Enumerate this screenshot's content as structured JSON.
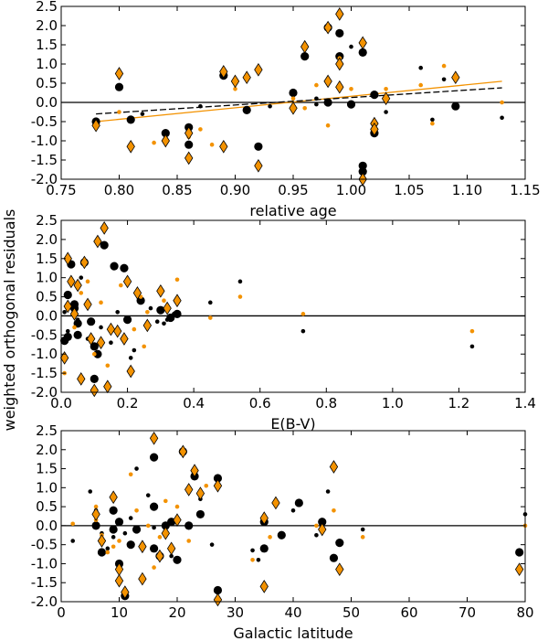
{
  "shared_ylabel": "weighted orthogonal residuals",
  "colors": {
    "orange": "#f39200",
    "black": "#000000",
    "diamond_edge": "#000000"
  },
  "chart_data": [
    {
      "type": "scatter",
      "xlabel": "relative age",
      "xlim": [
        0.75,
        1.15
      ],
      "ylim": [
        -2.0,
        2.5
      ],
      "xticks": [
        "0.75",
        "0.80",
        "0.85",
        "0.90",
        "0.95",
        "1.00",
        "1.05",
        "1.10",
        "1.15"
      ],
      "yticks": [
        "-2.0",
        "-1.5",
        "-1.0",
        "-0.5",
        "0.0",
        "0.5",
        "1.0",
        "1.5",
        "2.0",
        "2.5"
      ],
      "xtick_values": [
        0.75,
        0.8,
        0.85,
        0.9,
        0.95,
        1.0,
        1.05,
        1.1,
        1.15
      ],
      "series": [
        {
          "name": "large black circles",
          "marker": "circle-large",
          "color": "#000000",
          "x": [
            0.78,
            0.8,
            0.84,
            0.86,
            0.86,
            0.89,
            0.91,
            0.92,
            0.95,
            0.96,
            0.98,
            0.99,
            0.99,
            1.0,
            1.01,
            1.01,
            1.01,
            1.02,
            1.02,
            1.09,
            0.98,
            0.81
          ],
          "y": [
            -0.5,
            0.4,
            -0.8,
            -0.65,
            -1.1,
            0.7,
            -0.2,
            -1.15,
            0.25,
            1.2,
            1.95,
            1.2,
            1.8,
            -0.05,
            1.3,
            -1.65,
            -1.8,
            0.2,
            -0.8,
            -0.1,
            0.0,
            -0.45
          ]
        },
        {
          "name": "small black points",
          "marker": "circle-small",
          "color": "#000000",
          "x": [
            0.8,
            0.82,
            0.87,
            0.93,
            0.97,
            0.99,
            1.03,
            1.03,
            1.06,
            1.07,
            1.08,
            1.13,
            0.9,
            0.97,
            1.0
          ],
          "y": [
            0.75,
            -0.3,
            -0.1,
            -0.1,
            0.1,
            0.45,
            0.1,
            -0.25,
            0.9,
            -0.45,
            0.6,
            -0.4,
            0.55,
            -0.05,
            1.45
          ]
        },
        {
          "name": "small orange points",
          "marker": "circle-small",
          "color": "#f39200",
          "x": [
            0.8,
            0.83,
            0.87,
            0.88,
            0.9,
            0.95,
            0.96,
            0.97,
            0.99,
            1.0,
            1.03,
            1.06,
            1.07,
            1.08,
            1.13,
            0.86,
            0.98
          ],
          "y": [
            -0.25,
            -1.05,
            -0.7,
            -1.1,
            0.35,
            0.1,
            -0.15,
            0.45,
            1.15,
            0.35,
            0.35,
            0.45,
            -0.55,
            0.95,
            0.0,
            -0.9,
            -0.6
          ]
        },
        {
          "name": "orange diamonds",
          "marker": "diamond",
          "color": "#f39200",
          "x": [
            0.78,
            0.8,
            0.81,
            0.84,
            0.86,
            0.86,
            0.89,
            0.89,
            0.9,
            0.91,
            0.92,
            0.92,
            0.95,
            0.96,
            0.98,
            0.98,
            0.99,
            0.99,
            0.99,
            1.01,
            1.01,
            1.02,
            1.02,
            1.03,
            1.09
          ],
          "y": [
            -0.6,
            0.75,
            -1.15,
            -1.0,
            -1.45,
            -0.8,
            0.8,
            -1.15,
            0.55,
            0.65,
            0.85,
            -1.65,
            -0.15,
            1.45,
            1.95,
            0.55,
            2.3,
            1.0,
            0.4,
            1.55,
            -2.0,
            -0.55,
            -0.7,
            0.1,
            0.65
          ]
        }
      ],
      "fit_lines": [
        {
          "name": "orange fit",
          "color": "#f39200",
          "dash": false,
          "x": [
            0.78,
            1.13
          ],
          "y": [
            -0.5,
            0.55
          ]
        },
        {
          "name": "black dashed fit",
          "color": "#000000",
          "dash": true,
          "x": [
            0.78,
            1.13
          ],
          "y": [
            -0.3,
            0.38
          ]
        }
      ]
    },
    {
      "type": "scatter",
      "xlabel": "E(B-V)",
      "xlim": [
        0.0,
        1.4
      ],
      "ylim": [
        -2.0,
        2.5
      ],
      "xticks": [
        "0.0",
        "0.2",
        "0.4",
        "0.6",
        "0.8",
        "1.0",
        "1.2",
        "1.4"
      ],
      "yticks": [
        "-2.0",
        "-1.5",
        "-1.0",
        "-0.5",
        "0.0",
        "0.5",
        "1.0",
        "1.5",
        "2.0",
        "2.5"
      ],
      "xtick_values": [
        0.0,
        0.2,
        0.4,
        0.6,
        0.8,
        1.0,
        1.2,
        1.4
      ],
      "series": [
        {
          "name": "large black circles",
          "marker": "circle-large",
          "color": "#000000",
          "x": [
            0.01,
            0.02,
            0.03,
            0.04,
            0.05,
            0.05,
            0.07,
            0.09,
            0.1,
            0.1,
            0.13,
            0.16,
            0.19,
            0.24,
            0.3,
            0.33,
            0.35,
            0.02,
            0.04,
            0.11,
            0.2
          ],
          "y": [
            -0.65,
            0.55,
            1.35,
            0.2,
            -0.2,
            -0.5,
            1.4,
            -0.15,
            -1.65,
            -0.8,
            1.85,
            1.3,
            1.25,
            0.4,
            0.15,
            -0.05,
            0.05,
            -0.55,
            0.3,
            -1.0,
            -0.1
          ]
        },
        {
          "name": "small black points",
          "marker": "circle-small",
          "color": "#000000",
          "x": [
            0.02,
            0.05,
            0.06,
            0.08,
            0.12,
            0.15,
            0.17,
            0.21,
            0.22,
            0.27,
            0.29,
            0.31,
            0.32,
            0.33,
            0.34,
            0.45,
            0.54,
            0.73,
            1.24,
            0.01
          ],
          "y": [
            -0.4,
            -0.1,
            1.0,
            -0.6,
            -0.3,
            -0.7,
            0.1,
            -1.1,
            -0.9,
            0.2,
            -0.15,
            -0.2,
            -0.1,
            0.0,
            0.05,
            0.35,
            0.9,
            -0.4,
            -0.8,
            0.1
          ]
        },
        {
          "name": "small orange points",
          "marker": "circle-small",
          "color": "#f39200",
          "x": [
            0.02,
            0.04,
            0.06,
            0.08,
            0.1,
            0.12,
            0.14,
            0.18,
            0.22,
            0.24,
            0.25,
            0.26,
            0.3,
            0.31,
            0.35,
            0.45,
            0.54,
            0.73,
            1.24,
            0.01
          ],
          "y": [
            0.2,
            -0.3,
            0.6,
            0.9,
            -1.0,
            0.35,
            -1.3,
            0.8,
            -0.35,
            0.5,
            -0.8,
            0.1,
            0.65,
            0.4,
            0.95,
            -0.05,
            0.5,
            0.05,
            -0.4,
            -1.5
          ]
        },
        {
          "name": "orange diamonds",
          "marker": "diamond",
          "color": "#f39200",
          "x": [
            0.01,
            0.02,
            0.03,
            0.04,
            0.05,
            0.06,
            0.07,
            0.08,
            0.09,
            0.1,
            0.11,
            0.12,
            0.13,
            0.14,
            0.15,
            0.17,
            0.19,
            0.2,
            0.21,
            0.23,
            0.26,
            0.3,
            0.32,
            0.35,
            0.02
          ],
          "y": [
            -1.1,
            1.5,
            0.9,
            0.05,
            0.8,
            -1.65,
            1.4,
            0.3,
            -0.6,
            -1.95,
            1.95,
            -0.7,
            2.3,
            -1.85,
            -0.35,
            -0.4,
            -0.6,
            0.9,
            -1.45,
            0.6,
            -0.25,
            0.65,
            0.2,
            0.4,
            0.25
          ]
        }
      ],
      "fit_lines": []
    },
    {
      "type": "scatter",
      "xlabel": "Galactic latitude",
      "xlim": [
        0,
        80
      ],
      "ylim": [
        -2.0,
        2.5
      ],
      "xticks": [
        "0",
        "10",
        "20",
        "30",
        "40",
        "50",
        "60",
        "70",
        "80"
      ],
      "yticks": [
        "-2.0",
        "-1.5",
        "-1.0",
        "-0.5",
        "0.0",
        "0.5",
        "1.0",
        "1.5",
        "2.0",
        "2.5"
      ],
      "xtick_values": [
        0,
        10,
        20,
        30,
        40,
        50,
        60,
        70,
        80
      ],
      "series": [
        {
          "name": "large black circles",
          "marker": "circle-large",
          "color": "#000000",
          "x": [
            6,
            7,
            9,
            10,
            10,
            11,
            12,
            16,
            16,
            16,
            17,
            18,
            20,
            21,
            22,
            23,
            24,
            27,
            27,
            35,
            35,
            38,
            41,
            45,
            47,
            48,
            79,
            9,
            13,
            19
          ],
          "y": [
            0.0,
            -0.7,
            0.4,
            0.1,
            -1.0,
            -1.85,
            -0.5,
            0.5,
            1.8,
            -0.6,
            -0.8,
            0.0,
            -0.9,
            1.95,
            0.0,
            1.3,
            0.3,
            1.25,
            -1.7,
            0.1,
            -0.6,
            -0.25,
            0.6,
            0.1,
            -0.85,
            -0.45,
            -0.7,
            -0.1,
            -0.1,
            0.1
          ]
        },
        {
          "name": "small black points",
          "marker": "circle-small",
          "color": "#000000",
          "x": [
            2,
            5,
            6,
            8,
            9,
            11,
            13,
            15,
            16,
            19,
            24,
            26,
            33,
            34,
            40,
            44,
            46,
            52,
            80,
            7,
            12
          ],
          "y": [
            -0.4,
            0.9,
            0.4,
            -0.6,
            -0.3,
            -0.2,
            1.5,
            0.8,
            -0.05,
            -0.8,
            0.7,
            -0.5,
            -0.65,
            -0.9,
            0.4,
            -0.25,
            0.9,
            -0.1,
            0.3,
            -0.2,
            0.2
          ]
        },
        {
          "name": "small orange points",
          "marker": "circle-small",
          "color": "#f39200",
          "x": [
            2,
            6,
            7,
            8,
            10,
            12,
            13,
            15,
            16,
            18,
            20,
            22,
            25,
            33,
            36,
            44,
            47,
            52,
            80,
            6,
            9,
            17
          ],
          "y": [
            0.05,
            0.5,
            -0.25,
            -0.7,
            -0.4,
            1.35,
            0.4,
            0.0,
            -1.1,
            0.65,
            0.5,
            -0.4,
            1.05,
            -0.9,
            -0.3,
            0.0,
            0.4,
            -0.3,
            0.0,
            0.15,
            -0.55,
            -0.3
          ]
        },
        {
          "name": "orange diamonds",
          "marker": "diamond",
          "color": "#f39200",
          "x": [
            6,
            7,
            9,
            10,
            10,
            11,
            14,
            16,
            17,
            18,
            20,
            21,
            22,
            23,
            24,
            27,
            27,
            35,
            35,
            37,
            45,
            47,
            48,
            79,
            14,
            19
          ],
          "y": [
            0.3,
            -0.4,
            0.75,
            -1.15,
            -1.45,
            -1.75,
            -0.55,
            2.3,
            -0.8,
            -0.2,
            0.15,
            1.95,
            0.95,
            1.45,
            0.85,
            1.05,
            -1.95,
            0.2,
            -1.6,
            0.6,
            -0.1,
            1.55,
            -1.15,
            -1.15,
            -1.4,
            -0.6
          ]
        }
      ],
      "fit_lines": []
    }
  ]
}
